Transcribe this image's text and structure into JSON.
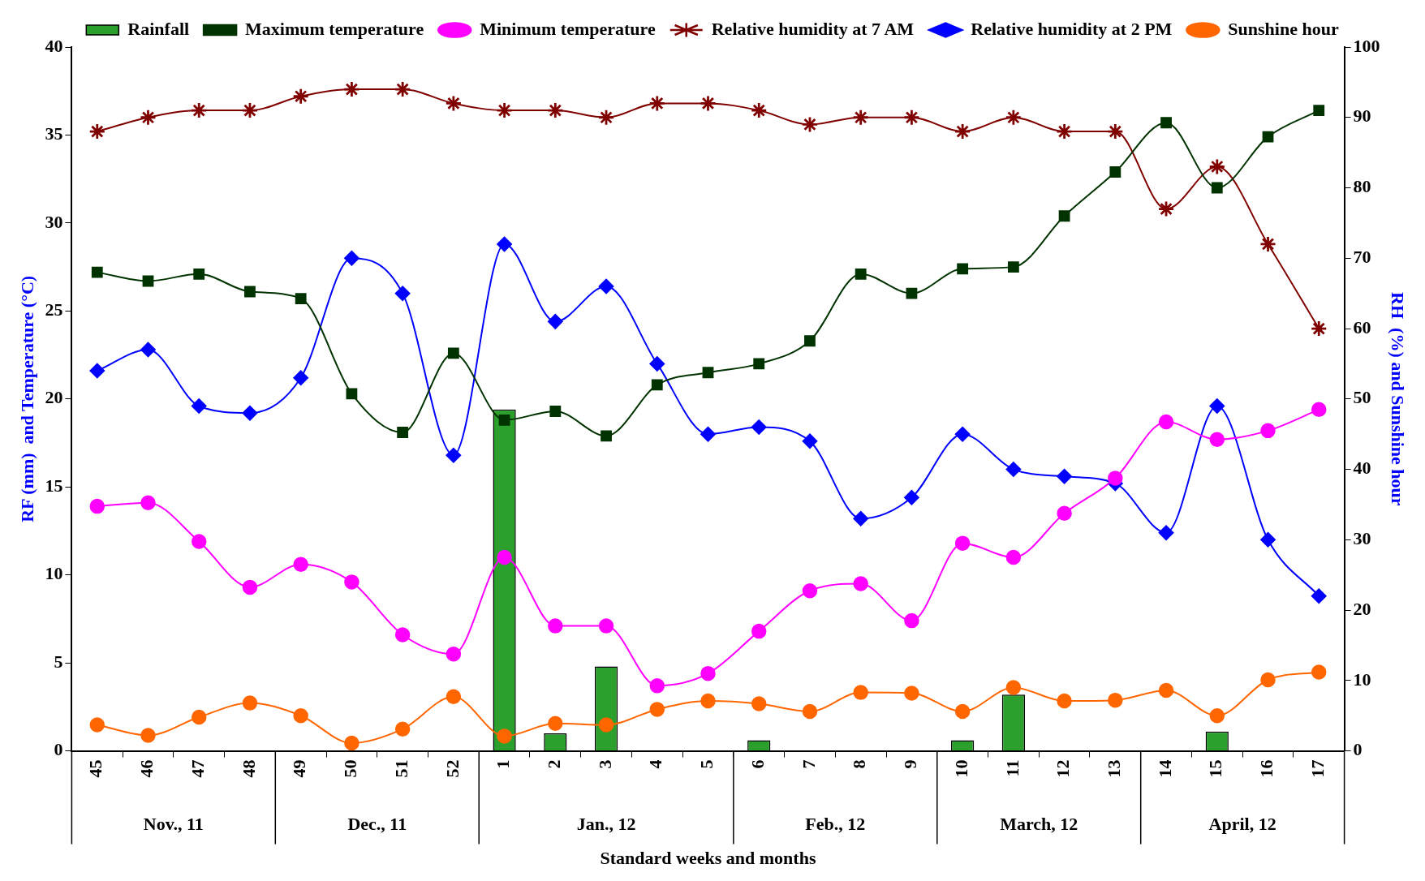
{
  "chart_data": {
    "type": "bar",
    "xlabel": "Standard weeks and months",
    "ylabel": "RF (mm)  and Temperature (°C)",
    "y2label": "RH  (%) and Sunshine hour",
    "categories": [
      "45",
      "46",
      "47",
      "48",
      "49",
      "50",
      "51",
      "52",
      "1",
      "2",
      "3",
      "4",
      "5",
      "6",
      "7",
      "8",
      "9",
      "10",
      "11",
      "12",
      "13",
      "14",
      "15",
      "16",
      "17"
    ],
    "series": [
      {
        "name": "Rainfall",
        "color": "#2ca02c",
        "axis": "y",
        "marker": "square",
        "values": [
          0,
          0,
          0,
          0,
          0,
          0,
          0,
          0,
          19.4,
          1.0,
          4.8,
          0,
          0,
          0.6,
          0,
          0,
          0,
          0.6,
          3.2,
          0,
          0,
          0,
          1.1,
          0,
          0
        ]
      },
      {
        "name": "Maximum temperature",
        "type": "line",
        "color": "#003300",
        "axis": "y",
        "marker": "square",
        "values": [
          27.2,
          26.7,
          27.1,
          26.1,
          25.7,
          20.3,
          18.1,
          22.6,
          18.8,
          19.3,
          17.9,
          20.8,
          21.5,
          22.0,
          23.3,
          27.1,
          26.0,
          27.4,
          27.5,
          30.4,
          32.9,
          35.7,
          32.0,
          34.9,
          36.4
        ]
      },
      {
        "name": "Minimum temperature",
        "type": "line",
        "color": "#ff00ff",
        "axis": "y",
        "marker": "circle",
        "values": [
          13.9,
          14.1,
          11.9,
          9.3,
          10.6,
          9.6,
          6.6,
          5.5,
          11.0,
          7.1,
          7.1,
          3.7,
          4.4,
          6.8,
          9.1,
          9.5,
          7.4,
          11.8,
          11.0,
          13.5,
          15.5,
          18.7,
          17.7,
          18.2,
          19.4
        ]
      },
      {
        "name": "Relative humidity at 7 AM",
        "type": "line",
        "color": "#800000",
        "axis": "y2",
        "marker": "star",
        "values": [
          88,
          90,
          91,
          91,
          93,
          94,
          94,
          92,
          91,
          91,
          90,
          92,
          92,
          91,
          89,
          90,
          90,
          88,
          90,
          88,
          88,
          77,
          83,
          72,
          60
        ]
      },
      {
        "name": "Relative humidity at 2 PM",
        "type": "line",
        "color": "#0000ff",
        "axis": "y2",
        "marker": "diamond",
        "values": [
          54,
          57,
          49,
          48,
          53,
          70,
          65,
          42,
          72,
          61,
          66,
          55,
          45,
          46,
          44,
          33,
          36,
          45,
          40,
          39,
          38,
          31,
          49,
          30,
          22
        ]
      },
      {
        "name": "Sunshine hour",
        "type": "line",
        "color": "#ff6600",
        "axis": "y2",
        "marker": "circle",
        "values": [
          3.7,
          2.2,
          4.8,
          6.8,
          5.0,
          1.1,
          3.1,
          7.7,
          2.1,
          3.9,
          3.7,
          5.9,
          7.1,
          6.7,
          5.6,
          8.3,
          8.2,
          5.6,
          9.0,
          7.1,
          7.2,
          8.6,
          5.0,
          10.1,
          11.2
        ]
      }
    ],
    "ylim": [
      0,
      40
    ],
    "yticks": [
      0,
      5,
      10,
      15,
      20,
      25,
      30,
      35,
      40
    ],
    "y2lim": [
      0,
      100
    ],
    "y2ticks": [
      0,
      10,
      20,
      30,
      40,
      50,
      60,
      70,
      80,
      90,
      100
    ],
    "legend": "top",
    "grid": false,
    "annotations": [
      "Nov., 11",
      "Dec., 11",
      "Jan., 12",
      "Feb., 12",
      "March, 12",
      "April, 12"
    ]
  }
}
